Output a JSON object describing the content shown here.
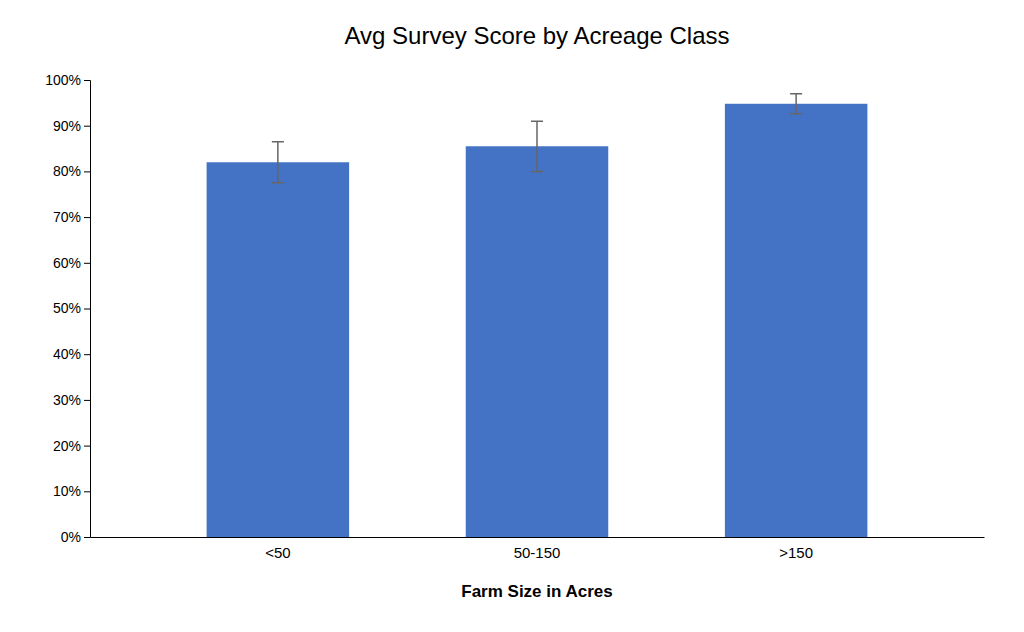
{
  "chart_data": {
    "type": "bar",
    "title": "Avg Survey Score by Acreage Class",
    "xlabel": "Farm Size in Acres",
    "categories": [
      "<50",
      "50-150",
      ">150"
    ],
    "values": [
      0.82,
      0.855,
      0.948
    ],
    "errors": [
      0.045,
      0.055,
      0.022
    ],
    "color": "#4472C4",
    "ylim": [
      0,
      1.0
    ],
    "yticks": [
      {
        "value": 0.0,
        "label": "0%"
      },
      {
        "value": 0.1,
        "label": "10%"
      },
      {
        "value": 0.2,
        "label": "20%"
      },
      {
        "value": 0.3,
        "label": "30%"
      },
      {
        "value": 0.4,
        "label": "40%"
      },
      {
        "value": 0.5,
        "label": "50%"
      },
      {
        "value": 0.6,
        "label": "60%"
      },
      {
        "value": 0.7,
        "label": "70%"
      },
      {
        "value": 0.8,
        "label": "80%"
      },
      {
        "value": 0.9,
        "label": "90%"
      },
      {
        "value": 1.0,
        "label": "100%"
      }
    ],
    "grid": false
  }
}
